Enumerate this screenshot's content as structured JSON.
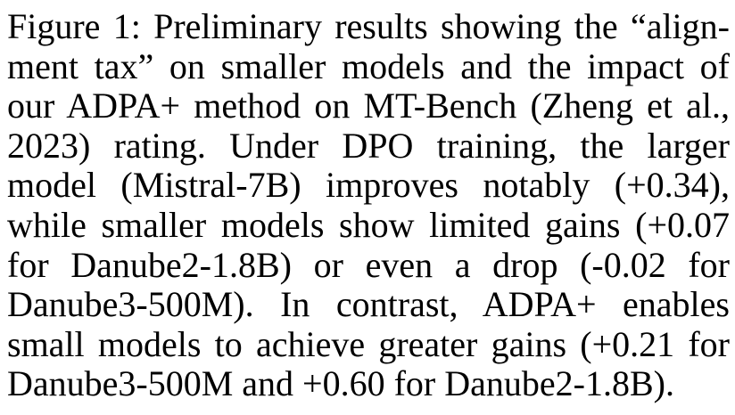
{
  "caption": {
    "lines": [
      "Figure 1: Preliminary results showing the “align-",
      "ment tax” on smaller models and the impact of",
      "our ADPA+ method on MT-Bench (Zheng et al.,",
      "2023) rating. Under DPO training, the larger",
      "model (Mistral-7B) improves notably (+0.34),",
      "while smaller models show limited gains (+0.07",
      "for Danube2-1.8B) or even a drop (-0.02 for",
      "Danube3-500M). In contrast, ADPA+ enables",
      "small models to achieve greater gains (+0.21 for",
      "Danube3-500M and +0.60 for Danube2-1.8B)."
    ]
  }
}
